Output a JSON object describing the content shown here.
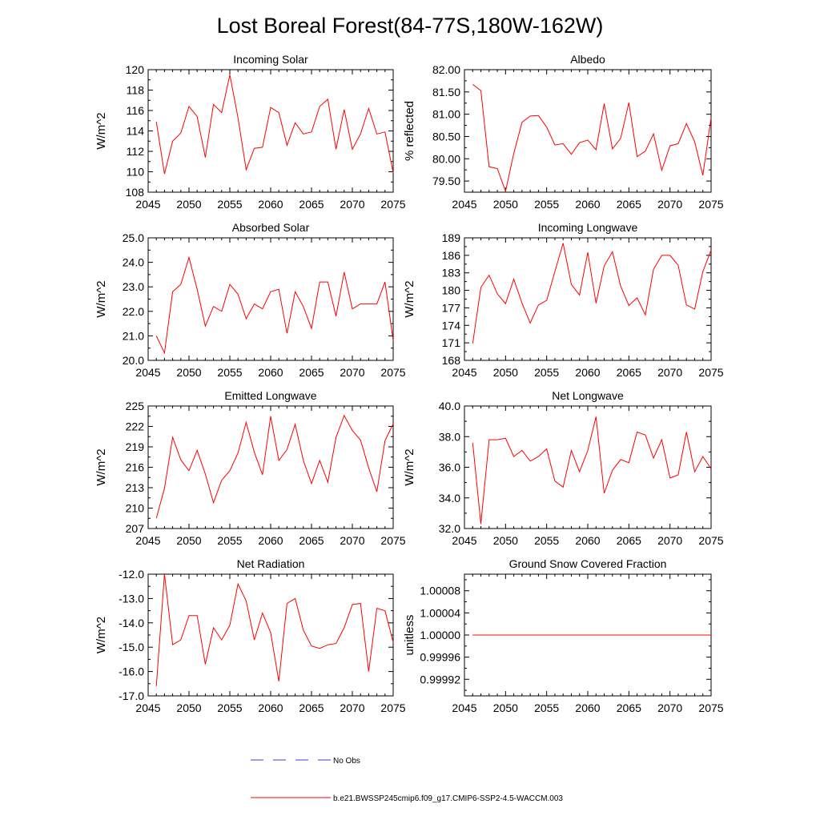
{
  "figure_title": "Lost Boreal Forest(84-77S,180W-162W)",
  "legend": {
    "obs_label": "No Obs",
    "model_label": "b.e21.BWSSP245cmip6.f09_g17.CMIP6-SSP2-4.5-WACCM.003",
    "obs_color": "#3b3bd6",
    "model_color": "#ff0000"
  },
  "chart_data": [
    {
      "type": "line",
      "title": "Incoming Solar",
      "ylabel": "W/m^2",
      "xlabel": "",
      "xlim": [
        2045,
        2075
      ],
      "ylim": [
        108,
        120
      ],
      "xticks": [
        2045,
        2050,
        2055,
        2060,
        2065,
        2070,
        2075
      ],
      "yticks": [
        108,
        110,
        112,
        114,
        116,
        118,
        120
      ],
      "ytick_labels": [
        "108",
        "110",
        "112",
        "114",
        "116",
        "118",
        "120"
      ],
      "x": [
        2046,
        2047,
        2048,
        2049,
        2050,
        2051,
        2052,
        2053,
        2054,
        2055,
        2056,
        2057,
        2058,
        2059,
        2060,
        2061,
        2062,
        2063,
        2064,
        2065,
        2066,
        2067,
        2068,
        2069,
        2070,
        2071,
        2072,
        2073,
        2074,
        2075
      ],
      "series": [
        {
          "name": "b.e21.BWSSP245cmip6.f09_g17.CMIP6-SSP2-4.5-WACCM.003",
          "values": [
            114.9,
            109.8,
            113.0,
            113.8,
            116.4,
            115.4,
            111.4,
            116.6,
            115.8,
            119.5,
            115.3,
            110.2,
            112.3,
            112.4,
            116.3,
            115.8,
            112.6,
            114.8,
            113.7,
            113.9,
            116.4,
            117.1,
            112.2,
            116.1,
            112.2,
            113.7,
            116.2,
            113.7,
            113.9,
            109.9
          ]
        }
      ]
    },
    {
      "type": "line",
      "title": "Albedo",
      "ylabel": "% reflected",
      "xlabel": "",
      "xlim": [
        2045,
        2075
      ],
      "ylim": [
        79.25,
        82.0
      ],
      "xticks": [
        2045,
        2050,
        2055,
        2060,
        2065,
        2070,
        2075
      ],
      "yticks": [
        79.5,
        80.0,
        80.5,
        81.0,
        81.5,
        82.0
      ],
      "ytick_labels": [
        "79.50",
        "80.00",
        "80.50",
        "81.00",
        "81.50",
        "82.00"
      ],
      "x": [
        2046,
        2047,
        2048,
        2049,
        2050,
        2051,
        2052,
        2053,
        2054,
        2055,
        2056,
        2057,
        2058,
        2059,
        2060,
        2061,
        2062,
        2063,
        2064,
        2065,
        2066,
        2067,
        2068,
        2069,
        2070,
        2071,
        2072,
        2073,
        2074,
        2075
      ],
      "series": [
        {
          "name": "b.e21.BWSSP245cmip6.f09_g17.CMIP6-SSP2-4.5-WACCM.003",
          "values": [
            81.67,
            81.53,
            79.82,
            79.78,
            79.27,
            80.12,
            80.82,
            80.96,
            80.97,
            80.71,
            80.31,
            80.34,
            80.1,
            80.36,
            80.42,
            80.2,
            81.24,
            80.22,
            80.46,
            81.26,
            80.05,
            80.17,
            80.56,
            79.74,
            80.29,
            80.34,
            80.79,
            80.38,
            79.63,
            80.92
          ]
        }
      ]
    },
    {
      "type": "line",
      "title": "Absorbed Solar",
      "ylabel": "W/m^2",
      "xlabel": "",
      "xlim": [
        2045,
        2075
      ],
      "ylim": [
        20.0,
        25.0
      ],
      "xticks": [
        2045,
        2050,
        2055,
        2060,
        2065,
        2070,
        2075
      ],
      "yticks": [
        20.0,
        21.0,
        22.0,
        23.0,
        24.0,
        25.0
      ],
      "ytick_labels": [
        "20.0",
        "21.0",
        "22.0",
        "23.0",
        "24.0",
        "25.0"
      ],
      "x": [
        2046,
        2047,
        2048,
        2049,
        2050,
        2051,
        2052,
        2053,
        2054,
        2055,
        2056,
        2057,
        2058,
        2059,
        2060,
        2061,
        2062,
        2063,
        2064,
        2065,
        2066,
        2067,
        2068,
        2069,
        2070,
        2071,
        2072,
        2073,
        2074,
        2075
      ],
      "series": [
        {
          "name": "b.e21.BWSSP245cmip6.f09_g17.CMIP6-SSP2-4.5-WACCM.003",
          "values": [
            21.0,
            20.3,
            22.8,
            23.1,
            24.2,
            22.9,
            21.4,
            22.2,
            22.0,
            23.1,
            22.7,
            21.7,
            22.3,
            22.1,
            22.8,
            22.9,
            21.1,
            22.8,
            22.2,
            21.3,
            23.2,
            23.2,
            21.8,
            23.6,
            22.1,
            22.3,
            22.3,
            22.3,
            23.2,
            20.8
          ]
        }
      ]
    },
    {
      "type": "line",
      "title": "Incoming Longwave",
      "ylabel": "W/m^2",
      "xlabel": "",
      "xlim": [
        2045,
        2075
      ],
      "ylim": [
        168,
        189
      ],
      "xticks": [
        2045,
        2050,
        2055,
        2060,
        2065,
        2070,
        2075
      ],
      "yticks": [
        168,
        171,
        174,
        177,
        180,
        183,
        186,
        189
      ],
      "ytick_labels": [
        "168",
        "171",
        "174",
        "177",
        "180",
        "183",
        "186",
        "189"
      ],
      "x": [
        2046,
        2047,
        2048,
        2049,
        2050,
        2051,
        2052,
        2053,
        2054,
        2055,
        2056,
        2057,
        2058,
        2059,
        2060,
        2061,
        2062,
        2063,
        2064,
        2065,
        2066,
        2067,
        2068,
        2069,
        2070,
        2071,
        2072,
        2073,
        2074,
        2075
      ],
      "series": [
        {
          "name": "b.e21.BWSSP245cmip6.f09_g17.CMIP6-SSP2-4.5-WACCM.003",
          "values": [
            170.9,
            180.5,
            182.6,
            179.4,
            177.7,
            181.9,
            177.8,
            174.4,
            177.5,
            178.3,
            183.2,
            188.1,
            181.0,
            179.2,
            186.5,
            177.8,
            184.2,
            186.6,
            180.7,
            177.4,
            178.7,
            175.8,
            183.6,
            186.0,
            186.0,
            184.3,
            177.5,
            176.8,
            183.2,
            186.9
          ]
        }
      ]
    },
    {
      "type": "line",
      "title": "Emitted Longwave",
      "ylabel": "W/m^2",
      "xlabel": "",
      "xlim": [
        2045,
        2075
      ],
      "ylim": [
        207,
        225
      ],
      "xticks": [
        2045,
        2050,
        2055,
        2060,
        2065,
        2070,
        2075
      ],
      "yticks": [
        207,
        210,
        213,
        216,
        219,
        222,
        225
      ],
      "ytick_labels": [
        "207",
        "210",
        "213",
        "216",
        "219",
        "222",
        "225"
      ],
      "x": [
        2046,
        2047,
        2048,
        2049,
        2050,
        2051,
        2052,
        2053,
        2054,
        2055,
        2056,
        2057,
        2058,
        2059,
        2060,
        2061,
        2062,
        2063,
        2064,
        2065,
        2066,
        2067,
        2068,
        2069,
        2070,
        2071,
        2072,
        2073,
        2074,
        2075
      ],
      "series": [
        {
          "name": "b.e21.BWSSP245cmip6.f09_g17.CMIP6-SSP2-4.5-WACCM.003",
          "values": [
            208.5,
            212.9,
            220.4,
            217.1,
            215.5,
            218.5,
            215.0,
            210.8,
            214.1,
            215.5,
            218.1,
            222.6,
            218.2,
            214.9,
            223.5,
            217.0,
            218.6,
            222.3,
            217.0,
            213.6,
            217.0,
            213.8,
            220.4,
            223.6,
            221.4,
            220.0,
            215.9,
            212.4,
            219.9,
            222.4
          ]
        }
      ]
    },
    {
      "type": "line",
      "title": "Net Longwave",
      "ylabel": "W/m^2",
      "xlabel": "",
      "xlim": [
        2045,
        2075
      ],
      "ylim": [
        32.0,
        40.0
      ],
      "xticks": [
        2045,
        2050,
        2055,
        2060,
        2065,
        2070,
        2075
      ],
      "yticks": [
        32.0,
        34.0,
        36.0,
        38.0,
        40.0
      ],
      "ytick_labels": [
        "32.0",
        "34.0",
        "36.0",
        "38.0",
        "40.0"
      ],
      "x": [
        2046,
        2047,
        2048,
        2049,
        2050,
        2051,
        2052,
        2053,
        2054,
        2055,
        2056,
        2057,
        2058,
        2059,
        2060,
        2061,
        2062,
        2063,
        2064,
        2065,
        2066,
        2067,
        2068,
        2069,
        2070,
        2071,
        2072,
        2073,
        2074,
        2075
      ],
      "series": [
        {
          "name": "b.e21.BWSSP245cmip6.f09_g17.CMIP6-SSP2-4.5-WACCM.003",
          "values": [
            37.6,
            32.3,
            37.8,
            37.8,
            37.9,
            36.7,
            37.1,
            36.4,
            36.7,
            37.2,
            35.1,
            34.7,
            37.1,
            35.7,
            37.1,
            39.3,
            34.3,
            35.8,
            36.5,
            36.3,
            38.3,
            38.1,
            36.6,
            37.8,
            35.3,
            35.5,
            38.3,
            35.7,
            36.7,
            35.9
          ]
        }
      ]
    },
    {
      "type": "line",
      "title": "Net Radiation",
      "ylabel": "W/m^2",
      "xlabel": "",
      "xlim": [
        2045,
        2075
      ],
      "ylim": [
        -17.0,
        -12.0
      ],
      "xticks": [
        2045,
        2050,
        2055,
        2060,
        2065,
        2070,
        2075
      ],
      "yticks": [
        -17.0,
        -16.0,
        -15.0,
        -14.0,
        -13.0,
        -12.0
      ],
      "ytick_labels": [
        "-17.0",
        "-16.0",
        "-15.0",
        "-14.0",
        "-13.0",
        "-12.0"
      ],
      "x": [
        2046,
        2047,
        2048,
        2049,
        2050,
        2051,
        2052,
        2053,
        2054,
        2055,
        2056,
        2057,
        2058,
        2059,
        2060,
        2061,
        2062,
        2063,
        2064,
        2065,
        2066,
        2067,
        2068,
        2069,
        2070,
        2071,
        2072,
        2073,
        2074,
        2075
      ],
      "series": [
        {
          "name": "b.e21.BWSSP245cmip6.f09_g17.CMIP6-SSP2-4.5-WACCM.003",
          "values": [
            -16.6,
            -12.0,
            -14.9,
            -14.7,
            -13.7,
            -13.7,
            -15.7,
            -14.2,
            -14.7,
            -14.1,
            -12.4,
            -13.1,
            -14.7,
            -13.6,
            -14.4,
            -16.4,
            -13.2,
            -13.0,
            -14.3,
            -14.95,
            -15.05,
            -14.9,
            -14.85,
            -14.2,
            -13.25,
            -13.2,
            -16.0,
            -13.4,
            -13.5,
            -14.8
          ]
        }
      ]
    },
    {
      "type": "line",
      "title": "Ground Snow Covered Fraction",
      "ylabel": "unitless",
      "xlabel": "",
      "xlim": [
        2045,
        2075
      ],
      "ylim": [
        0.99989,
        1.00011
      ],
      "xticks": [
        2045,
        2050,
        2055,
        2060,
        2065,
        2070,
        2075
      ],
      "yticks": [
        0.99992,
        0.99996,
        1.0,
        1.00004,
        1.00008
      ],
      "ytick_labels": [
        "0.99992",
        "0.99996",
        "1.00000",
        "1.00004",
        "1.00008"
      ],
      "x": [
        2046,
        2047,
        2048,
        2049,
        2050,
        2051,
        2052,
        2053,
        2054,
        2055,
        2056,
        2057,
        2058,
        2059,
        2060,
        2061,
        2062,
        2063,
        2064,
        2065,
        2066,
        2067,
        2068,
        2069,
        2070,
        2071,
        2072,
        2073,
        2074,
        2075
      ],
      "series": [
        {
          "name": "b.e21.BWSSP245cmip6.f09_g17.CMIP6-SSP2-4.5-WACCM.003",
          "values": [
            1.0,
            1.0,
            1.0,
            1.0,
            1.0,
            1.0,
            1.0,
            1.0,
            1.0,
            1.0,
            1.0,
            1.0,
            1.0,
            1.0,
            1.0,
            1.0,
            1.0,
            1.0,
            1.0,
            1.0,
            1.0,
            1.0,
            1.0,
            1.0,
            1.0,
            1.0,
            1.0,
            1.0,
            1.0,
            1.0
          ]
        }
      ]
    }
  ]
}
